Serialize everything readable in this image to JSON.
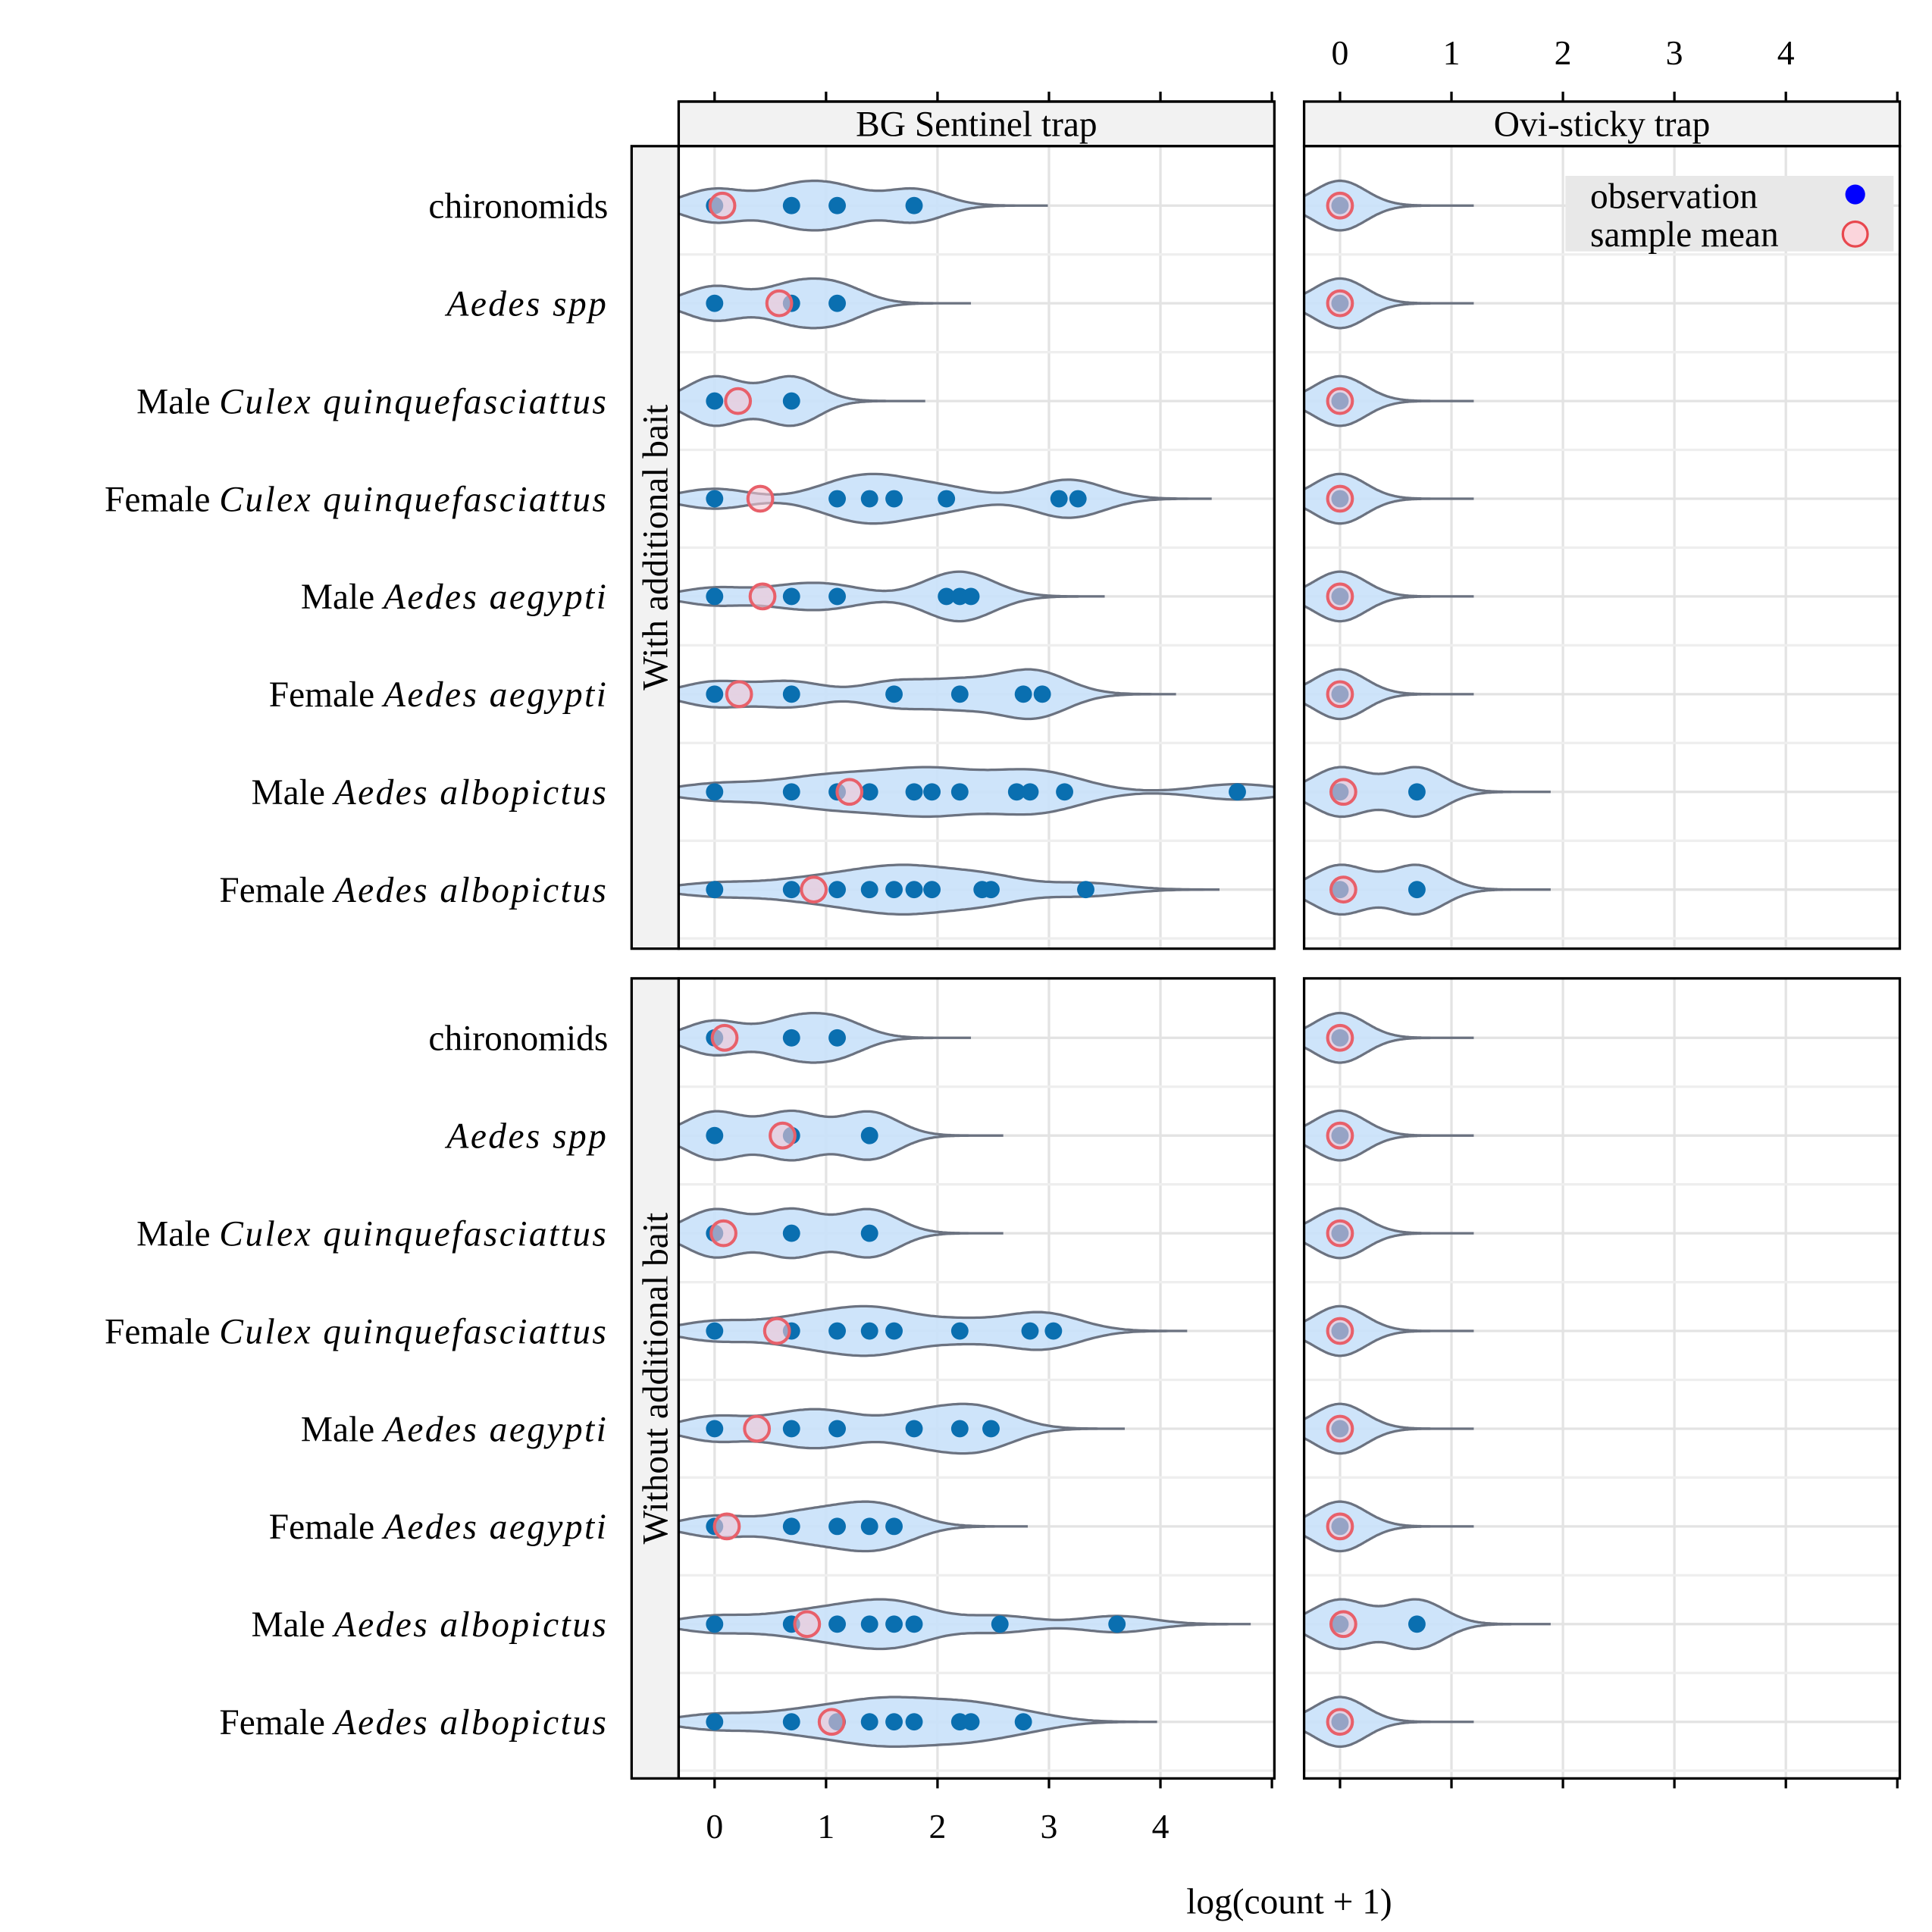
{
  "chart_data": {
    "type": "violin-dot",
    "xlabel": "log(count + 1)",
    "xlim": [
      -0.32,
      5.02
    ],
    "xticks": [
      0,
      1,
      2,
      3,
      4
    ],
    "grid": true,
    "legend": {
      "position": "top-right",
      "entries": [
        {
          "label": "observation",
          "color": "#0000ff",
          "marker": "filled-circle"
        },
        {
          "label": "sample mean",
          "color": "#e8474e",
          "marker": "open-circle"
        }
      ]
    },
    "colors": {
      "points": "#0a6fb0",
      "violin_fill": "#c9e1fa",
      "violin_line": "#6b7280",
      "mean_edge": "#e8606a",
      "mean_fill": "#f3c7d3",
      "strip": "#f2f2f2"
    },
    "columns": [
      "BG Sentinel trap",
      "Ovi-sticky trap"
    ],
    "rows": [
      "With additional bait",
      "Without additional bait"
    ],
    "categories": [
      {
        "pre": "",
        "it": "",
        "post": "chironomids"
      },
      {
        "pre": "",
        "it": "Aedes spp",
        "post": ""
      },
      {
        "pre": "Male ",
        "it": "Culex quinquefasciattus",
        "post": ""
      },
      {
        "pre": "Female ",
        "it": "Culex quinquefasciattus",
        "post": ""
      },
      {
        "pre": "Male ",
        "it": "Aedes aegypti",
        "post": ""
      },
      {
        "pre": "Female ",
        "it": "Aedes aegypti",
        "post": ""
      },
      {
        "pre": "Male ",
        "it": "Aedes albopictus",
        "post": ""
      },
      {
        "pre": "Female ",
        "it": "Aedes albopictus",
        "post": ""
      }
    ],
    "panels": [
      {
        "row": 0,
        "col": 0,
        "series": [
          {
            "obs": [
              0,
              0.69,
              1.1,
              1.79
            ],
            "mean": 0.07
          },
          {
            "obs": [
              0,
              0.69,
              1.1
            ],
            "mean": 0.58
          },
          {
            "obs": [
              0,
              0.69
            ],
            "mean": 0.21
          },
          {
            "obs": [
              0,
              1.1,
              1.39,
              1.61,
              2.08,
              3.09,
              3.26
            ],
            "mean": 0.41
          },
          {
            "obs": [
              0,
              0.69,
              1.1,
              2.08,
              2.2,
              2.3
            ],
            "mean": 0.43
          },
          {
            "obs": [
              0,
              0.69,
              1.61,
              2.2,
              2.77,
              2.94
            ],
            "mean": 0.22
          },
          {
            "obs": [
              0,
              0.69,
              1.1,
              1.39,
              1.79,
              1.95,
              2.2,
              2.71,
              2.83,
              3.14,
              4.69
            ],
            "mean": 1.21
          },
          {
            "obs": [
              0,
              0.69,
              1.1,
              1.39,
              1.61,
              1.79,
              1.95,
              2.4,
              2.48,
              3.33
            ],
            "mean": 0.89
          }
        ]
      },
      {
        "row": 0,
        "col": 1,
        "series": [
          {
            "obs": [
              0
            ],
            "mean": 0
          },
          {
            "obs": [
              0
            ],
            "mean": 0
          },
          {
            "obs": [
              0
            ],
            "mean": 0
          },
          {
            "obs": [
              0
            ],
            "mean": 0
          },
          {
            "obs": [
              0
            ],
            "mean": 0
          },
          {
            "obs": [
              0
            ],
            "mean": 0
          },
          {
            "obs": [
              0,
              0.69
            ],
            "mean": 0.03
          },
          {
            "obs": [
              0,
              0.69
            ],
            "mean": 0.03
          }
        ]
      },
      {
        "row": 1,
        "col": 0,
        "series": [
          {
            "obs": [
              0,
              0.69,
              1.1
            ],
            "mean": 0.09
          },
          {
            "obs": [
              0,
              0.69,
              1.39
            ],
            "mean": 0.61
          },
          {
            "obs": [
              0,
              0.69,
              1.39
            ],
            "mean": 0.08
          },
          {
            "obs": [
              0,
              0.69,
              1.1,
              1.39,
              1.61,
              2.2,
              2.83,
              3.04
            ],
            "mean": 0.56
          },
          {
            "obs": [
              0,
              0.69,
              1.1,
              1.79,
              2.2,
              2.48
            ],
            "mean": 0.38
          },
          {
            "obs": [
              0,
              0.69,
              1.1,
              1.39,
              1.61
            ],
            "mean": 0.11
          },
          {
            "obs": [
              0,
              0.69,
              1.1,
              1.39,
              1.61,
              1.79,
              2.56,
              3.61
            ],
            "mean": 0.83
          },
          {
            "obs": [
              0,
              0.69,
              1.1,
              1.39,
              1.61,
              1.79,
              2.2,
              2.3,
              2.77
            ],
            "mean": 1.05
          }
        ]
      },
      {
        "row": 1,
        "col": 1,
        "series": [
          {
            "obs": [
              0
            ],
            "mean": 0
          },
          {
            "obs": [
              0
            ],
            "mean": 0
          },
          {
            "obs": [
              0
            ],
            "mean": 0
          },
          {
            "obs": [
              0
            ],
            "mean": 0
          },
          {
            "obs": [
              0
            ],
            "mean": 0
          },
          {
            "obs": [
              0
            ],
            "mean": 0
          },
          {
            "obs": [
              0,
              0.69
            ],
            "mean": 0.03
          },
          {
            "obs": [
              0
            ],
            "mean": 0
          }
        ]
      }
    ]
  }
}
